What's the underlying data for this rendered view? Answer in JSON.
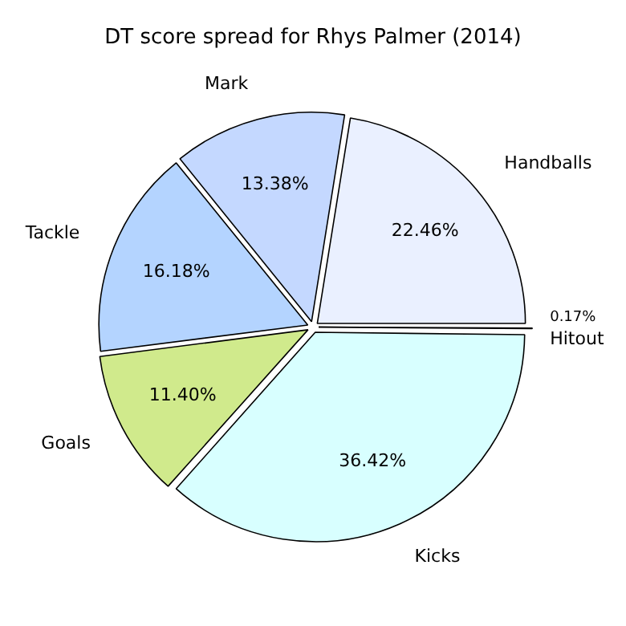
{
  "chart_data": {
    "type": "pie",
    "title": "DT score spread for Rhys Palmer (2014)",
    "categories": [
      "Handballs",
      "Mark",
      "Tackle",
      "Goals",
      "Kicks",
      "Hitout"
    ],
    "values": [
      22.46,
      13.38,
      16.18,
      11.4,
      36.42,
      0.17
    ],
    "value_labels": [
      "22.46%",
      "13.38%",
      "16.18%",
      "11.40%",
      "36.42%",
      "0.17%"
    ],
    "colors": [
      "#eaf0ff",
      "#c4d8ff",
      "#b4d4ff",
      "#d0ea8c",
      "#d8ffff",
      "#f4f4f4"
    ],
    "legend": false
  }
}
